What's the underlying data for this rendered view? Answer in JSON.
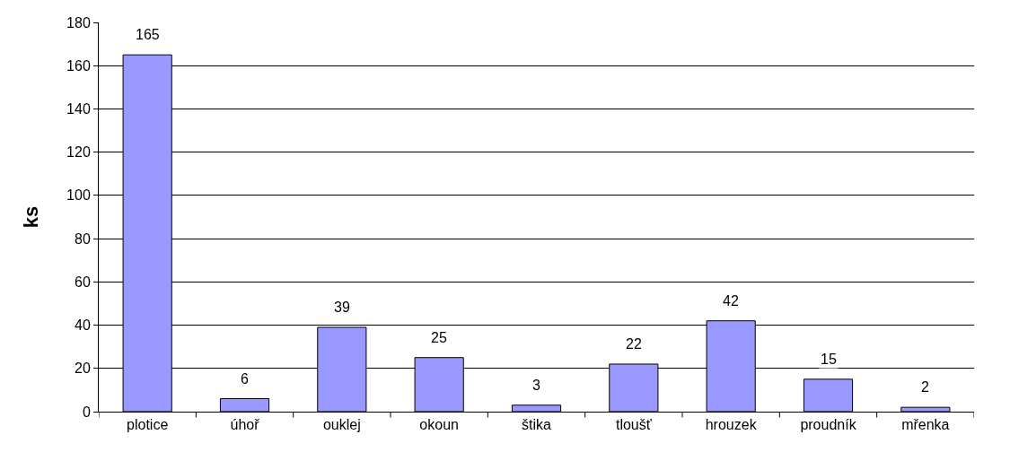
{
  "chart_data": {
    "type": "bar",
    "ylabel": "ks",
    "categories": [
      "plotice",
      "úhoř",
      "ouklej",
      "okoun",
      "štika",
      "tloušť",
      "hrouzek",
      "proudník",
      "mřenka"
    ],
    "values": [
      165,
      6,
      39,
      25,
      3,
      22,
      42,
      15,
      2
    ],
    "color": "#9999ff",
    "ylim": [
      0,
      180
    ],
    "yticks": [
      0,
      20,
      40,
      60,
      80,
      100,
      120,
      140,
      160,
      180
    ],
    "grid": "y",
    "data_labels": true
  }
}
